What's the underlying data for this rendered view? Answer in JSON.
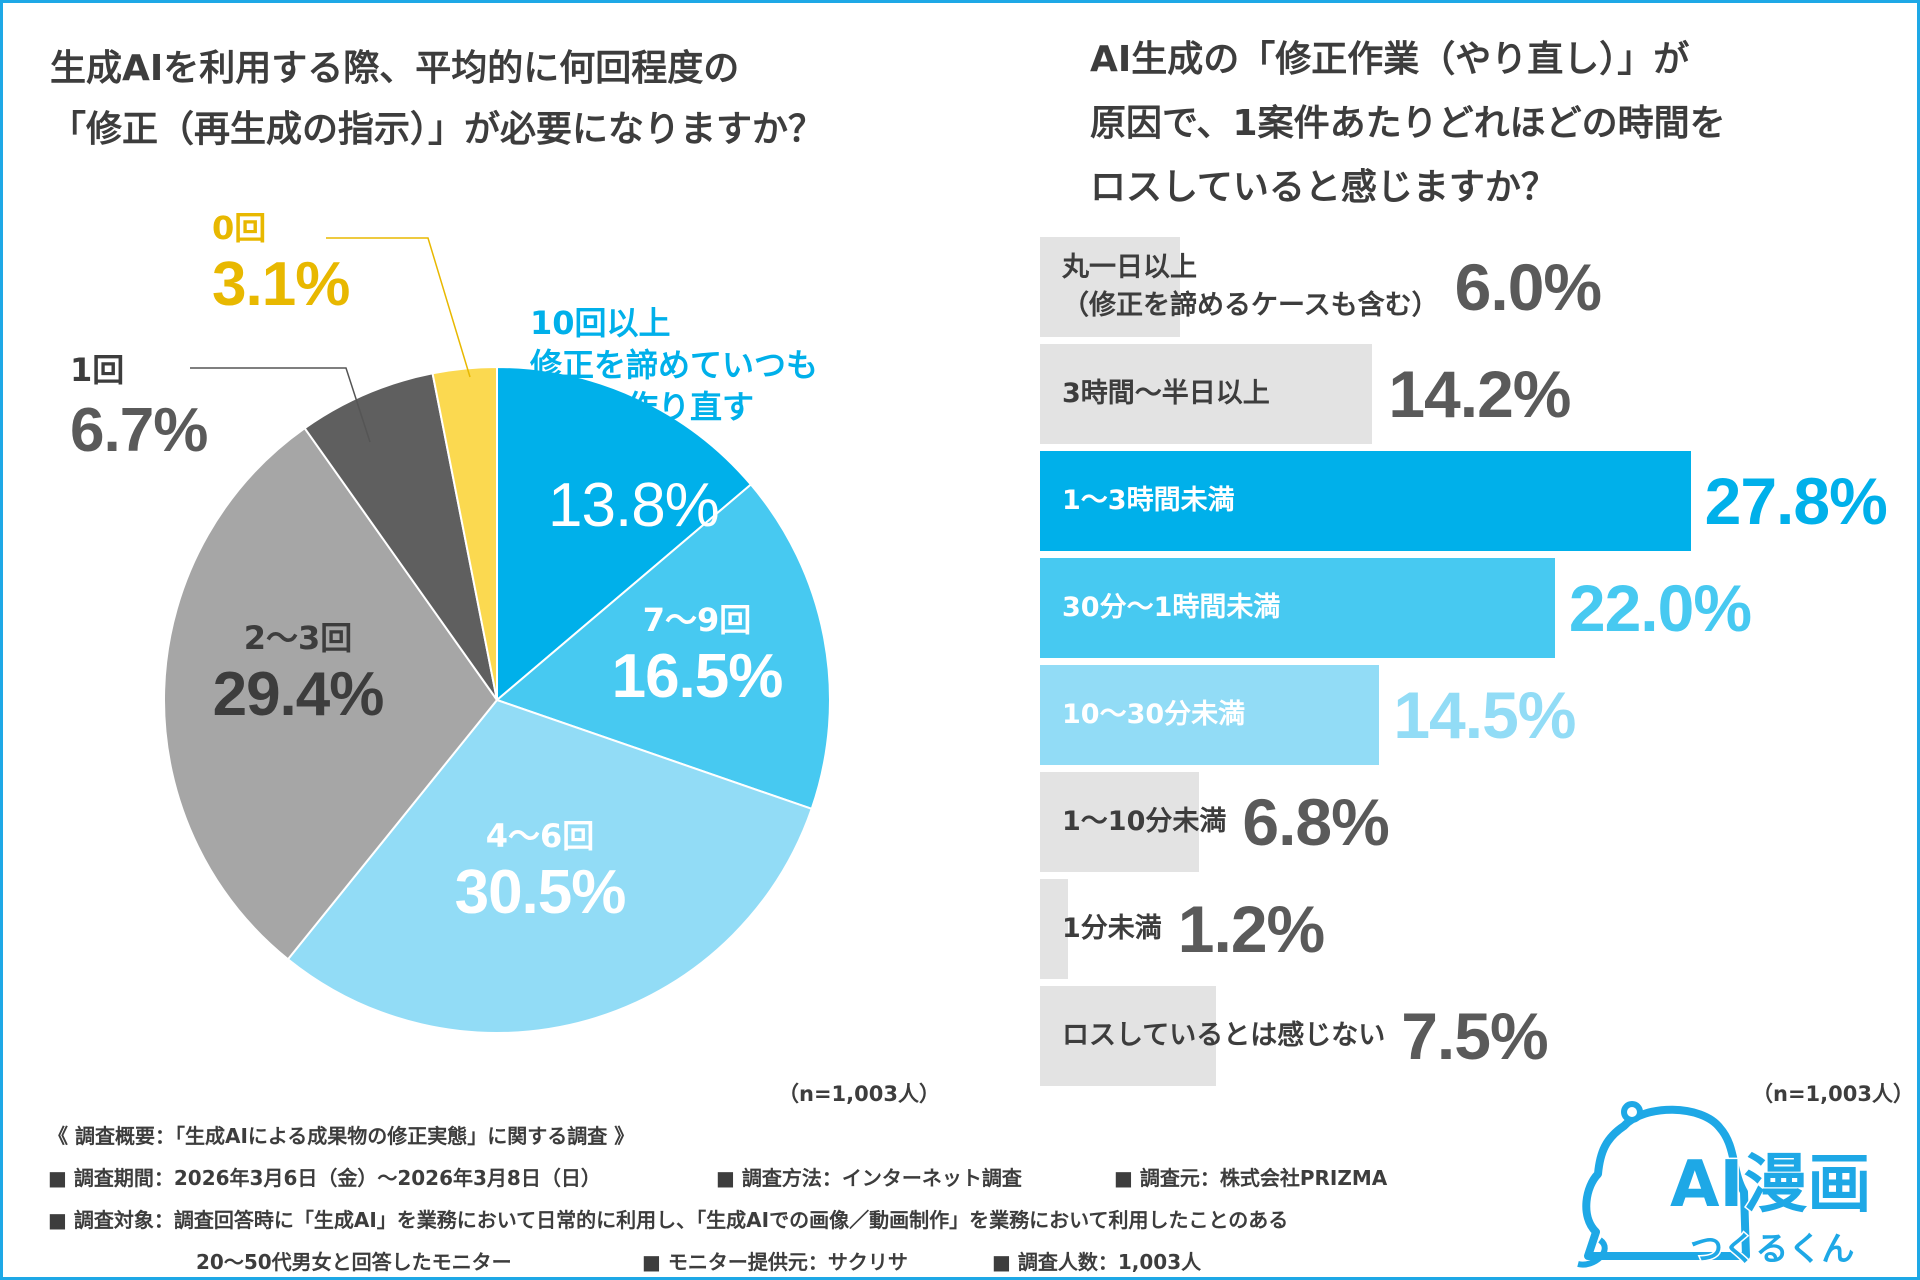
{
  "pie": {
    "title_line1": "生成AIを利用する際、平均的に何回程度の",
    "title_line2": "「修正（再生成の指示）」が必要になりますか？",
    "n": "（n=1,003人）"
  },
  "bar": {
    "title_line1": "AI生成の「修正作業（やり直し）」が",
    "title_line2": "原因で、1案件あたりどれほどの時間を",
    "title_line3": "ロスしていると感じますか？",
    "n": "（n=1,003人）"
  },
  "chart_data": [
    {
      "type": "pie",
      "title": "生成AIを利用する際、平均的に何回程度の「修正（再生成の指示）」が必要になりますか？",
      "slices": [
        {
          "name_lines": [
            "10回以上",
            "修正を諦めていつも",
            "自分で作り直す"
          ],
          "value": 13.8,
          "label": "13.8%",
          "color": "#00b0ea"
        },
        {
          "name_lines": [
            "7〜9回"
          ],
          "value": 16.5,
          "label": "16.5%",
          "color": "#47c9f1"
        },
        {
          "name_lines": [
            "4〜6回"
          ],
          "value": 30.5,
          "label": "30.5%",
          "color": "#92dcf6"
        },
        {
          "name_lines": [
            "2〜3回"
          ],
          "value": 29.4,
          "label": "29.4%",
          "color": "#a6a6a6"
        },
        {
          "name_lines": [
            "1回"
          ],
          "value": 6.7,
          "label": "6.7%",
          "color": "#5f5f5f"
        },
        {
          "name_lines": [
            "0回"
          ],
          "value": 3.1,
          "label": "3.1%",
          "color": "#fbd950"
        }
      ]
    },
    {
      "type": "bar",
      "orientation": "horizontal",
      "title": "AI生成の「修正作業（やり直し）」が原因で、1案件あたりどれほどの時間をロスしていると感じますか？",
      "categories": [
        [
          "丸一日以上",
          "（修正を諦めるケースも含む）"
        ],
        [
          "3時間〜半日以上"
        ],
        [
          "1〜3時間未満"
        ],
        [
          "30分〜1時間未満"
        ],
        [
          "10〜30分未満"
        ],
        [
          "1〜10分未満"
        ],
        [
          "1分未満"
        ],
        [
          "ロスしているとは感じない"
        ]
      ],
      "values": [
        6.0,
        14.2,
        27.8,
        22.0,
        14.5,
        6.8,
        1.2,
        7.5
      ],
      "value_labels": [
        "6.0%",
        "14.2%",
        "27.8%",
        "22.0%",
        "14.5%",
        "6.8%",
        "1.2%",
        "7.5%"
      ],
      "bar_colors": [
        "#e3e3e3",
        "#e3e3e3",
        "#00b0ea",
        "#47c9f1",
        "#92dcf6",
        "#e3e3e3",
        "#e3e3e3",
        "#e3e3e3"
      ],
      "label_colors": [
        "#3d3d3d",
        "#3d3d3d",
        "#ffffff",
        "#ffffff",
        "#ffffff",
        "#3d3d3d",
        "#3d3d3d",
        "#3d3d3d"
      ],
      "value_colors": [
        "#5a5a5a",
        "#5a5a5a",
        "#00b0ea",
        "#47c9f1",
        "#92dcf6",
        "#5a5a5a",
        "#5a5a5a",
        "#5a5a5a"
      ],
      "xlim": [
        0,
        28.5
      ]
    }
  ],
  "survey": {
    "heading": "《 調査概要：「生成AIによる成果物の修正実態」に関する調査 》",
    "period": "■ 調査期間：2026年3月6日（金）〜2026年3月8日（日）",
    "method": "■ 調査方法：インターネット調査",
    "source": "■ 調査元：株式会社PRIZMA",
    "target_line1": "■ 調査対象：調査回答時に「生成AI」を業務において日常的に利用し、「生成AIでの画像／動画制作」を業務において利用したことのある",
    "target_line2": "20〜50代男女と回答したモニター",
    "provider": "■ モニター提供元：サクリサ",
    "count": "■ 調査人数：1,003人"
  },
  "logo": {
    "line1": "AI漫画",
    "line2": "つくるくん",
    "color": "#1ea8e6"
  }
}
